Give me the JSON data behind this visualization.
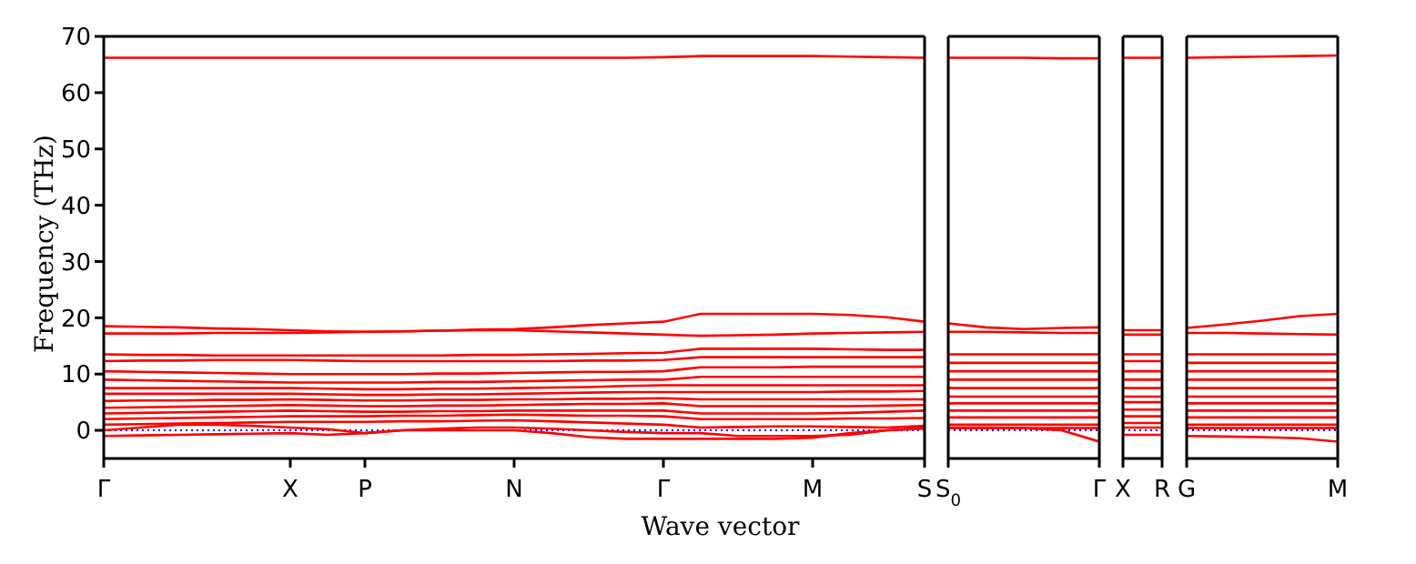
{
  "chart_data": [
    {
      "type": "line",
      "xlabel": "Wave vector",
      "ylabel": "Frequency (THz)",
      "ylim": [
        -5,
        70
      ],
      "yticks": [
        0,
        10,
        20,
        30,
        40,
        50,
        60,
        70
      ],
      "categories": [
        "Γ",
        null,
        null,
        null,
        null,
        "X",
        null,
        "P",
        null,
        null,
        null,
        "N",
        null,
        null,
        null,
        "Γ",
        null,
        null,
        null,
        "M",
        null,
        null,
        "S"
      ],
      "ref_lines": [
        {
          "axis": "y",
          "value": 0,
          "color": "#0000ff",
          "line_style": "dotted"
        }
      ],
      "series": [
        {
          "color": "#ff0000",
          "values": [
            66.2,
            66.2,
            66.2,
            66.2,
            66.2,
            66.2,
            66.2,
            66.2,
            66.2,
            66.2,
            66.2,
            66.2,
            66.2,
            66.2,
            66.2,
            66.3,
            66.5,
            66.5,
            66.5,
            66.5,
            66.4,
            66.3,
            66.2
          ]
        },
        {
          "color": "#ff0000",
          "values": [
            18.5,
            18.4,
            18.3,
            18.1,
            18,
            17.8,
            17.6,
            17.5,
            17.6,
            17.7,
            17.9,
            18,
            18.3,
            18.7,
            19,
            19.3,
            20.7,
            20.7,
            20.7,
            20.7,
            20.5,
            20.1,
            19.3
          ]
        },
        {
          "color": "#ff0000",
          "values": [
            17.2,
            17.2,
            17.2,
            17.3,
            17.3,
            17.3,
            17.4,
            17.5,
            17.6,
            17.7,
            17.8,
            17.8,
            17.6,
            17.4,
            17.2,
            17,
            16.8,
            16.9,
            17,
            17.2,
            17.3,
            17.4,
            17.5
          ]
        },
        {
          "color": "#ff0000",
          "values": [
            13.5,
            13.4,
            13.4,
            13.3,
            13.3,
            13.3,
            13.3,
            13.3,
            13.3,
            13.3,
            13.4,
            13.4,
            13.5,
            13.6,
            13.7,
            13.8,
            14.5,
            14.5,
            14.5,
            14.5,
            14.4,
            14.3,
            14.3
          ]
        },
        {
          "color": "#ff0000",
          "values": [
            12.3,
            12.4,
            12.4,
            12.5,
            12.5,
            12.5,
            12.4,
            12.3,
            12.3,
            12.3,
            12.3,
            12.3,
            12.3,
            12.4,
            12.4,
            12.5,
            13,
            13,
            13,
            13,
            13,
            13,
            13
          ]
        },
        {
          "color": "#ff0000",
          "values": [
            10.5,
            10.4,
            10.3,
            10.2,
            10.1,
            10,
            10,
            10,
            10,
            10.1,
            10.1,
            10.2,
            10.3,
            10.4,
            10.4,
            10.5,
            11.2,
            11.2,
            11.2,
            11.3,
            11.3,
            11.3,
            11.3
          ]
        },
        {
          "color": "#ff0000",
          "values": [
            9,
            8.9,
            8.8,
            8.7,
            8.6,
            8.5,
            8.5,
            8.5,
            8.5,
            8.6,
            8.6,
            8.7,
            8.8,
            8.9,
            9,
            9,
            9.5,
            9.5,
            9.5,
            9.5,
            9.5,
            9.5,
            9.5
          ]
        },
        {
          "color": "#ff0000",
          "values": [
            7.5,
            7.5,
            7.5,
            7.5,
            7.5,
            7.5,
            7.4,
            7.3,
            7.3,
            7.4,
            7.4,
            7.5,
            7.6,
            7.7,
            7.9,
            8,
            8,
            8,
            8,
            8,
            8,
            8,
            8
          ]
        },
        {
          "color": "#ff0000",
          "values": [
            6.5,
            6.5,
            6.5,
            6.5,
            6.5,
            6.5,
            6.4,
            6.3,
            6.3,
            6.4,
            6.4,
            6.5,
            6.6,
            6.7,
            6.8,
            6.8,
            6.8,
            6.8,
            6.8,
            6.8,
            6.9,
            6.9,
            7
          ]
        },
        {
          "color": "#ff0000",
          "values": [
            5.2,
            5.3,
            5.3,
            5.4,
            5.4,
            5.5,
            5.4,
            5.3,
            5.3,
            5.4,
            5.4,
            5.5,
            5.5,
            5.6,
            5.6,
            5.7,
            5.5,
            5.5,
            5.5,
            5.5,
            5.5,
            5.5,
            5.5
          ]
        },
        {
          "color": "#ff0000",
          "values": [
            4,
            4.1,
            4.2,
            4.3,
            4.4,
            4.5,
            4.4,
            4.3,
            4.3,
            4.4,
            4.4,
            4.5,
            4.6,
            4.7,
            4.7,
            4.8,
            4.3,
            4.3,
            4.3,
            4.3,
            4.3,
            4.4,
            4.5
          ]
        },
        {
          "color": "#ff0000",
          "values": [
            3,
            3.1,
            3.2,
            3.3,
            3.4,
            3.5,
            3.4,
            3.3,
            3.3,
            3.4,
            3.4,
            3.5,
            3.5,
            3.5,
            3.5,
            3.5,
            3,
            3,
            3,
            3,
            3.1,
            3.3,
            3.5
          ]
        },
        {
          "color": "#ff0000",
          "values": [
            2,
            2.1,
            2.2,
            2.3,
            2.4,
            2.5,
            2.5,
            2.5,
            2.6,
            2.6,
            2.7,
            2.8,
            2.7,
            2.6,
            2.6,
            2.5,
            2,
            2,
            2,
            2,
            2.1,
            2.1,
            2.2
          ]
        },
        {
          "color": "#ff0000",
          "values": [
            1,
            1.1,
            1.2,
            1.3,
            1.4,
            1.5,
            1.5,
            1.5,
            1.6,
            1.6,
            1.7,
            1.8,
            1.6,
            1.4,
            1.2,
            1,
            0.5,
            0.6,
            0.7,
            0.7,
            0.6,
            0.5,
            0.8
          ]
        },
        {
          "color": "#ff0000",
          "values": [
            0,
            0.5,
            1,
            1,
            0.8,
            0.5,
            0.2,
            -0.5,
            0,
            0.3,
            0.5,
            0.5,
            0.3,
            0,
            -0.3,
            -0.5,
            -0.5,
            -1,
            -1,
            -1,
            -0.8,
            0,
            0.5
          ]
        },
        {
          "color": "#ff0000",
          "values": [
            -1,
            -0.9,
            -0.8,
            -0.7,
            -0.6,
            -0.5,
            -0.8,
            -0.5,
            0,
            0,
            0,
            0,
            -0.5,
            -1.2,
            -1.5,
            -1.5,
            -1.5,
            -1.5,
            -1.5,
            -1.3,
            -0.5,
            0,
            0.3
          ]
        }
      ]
    },
    {
      "type": "line",
      "ylim": [
        -5,
        70
      ],
      "tick_labels": "x",
      "categories": [
        "S$_{0}$",
        null,
        null,
        null,
        "Γ"
      ],
      "ref_lines": [
        {
          "axis": "y",
          "value": 0,
          "color": "#0000ff",
          "line_style": "dotted"
        }
      ],
      "series": [
        {
          "color": "#ff0000",
          "values": [
            66.2,
            66.2,
            66.2,
            66.1,
            66.1
          ]
        },
        {
          "color": "#ff0000",
          "values": [
            19,
            18.3,
            18,
            18.2,
            18.3
          ]
        },
        {
          "color": "#ff0000",
          "values": [
            17.5,
            17.5,
            17.4,
            17.3,
            17.3
          ]
        },
        {
          "color": "#ff0000",
          "values": [
            13.5,
            13.5,
            13.5,
            13.5,
            13.5
          ]
        },
        {
          "color": "#ff0000",
          "values": [
            12,
            12,
            12,
            12,
            12
          ]
        },
        {
          "color": "#ff0000",
          "values": [
            10.5,
            10.5,
            10.5,
            10.5,
            10.5
          ]
        },
        {
          "color": "#ff0000",
          "values": [
            9,
            9,
            9,
            9,
            9
          ]
        },
        {
          "color": "#ff0000",
          "values": [
            7.5,
            7.5,
            7.5,
            7.5,
            7.5
          ]
        },
        {
          "color": "#ff0000",
          "values": [
            6,
            6,
            6,
            6,
            6
          ]
        },
        {
          "color": "#ff0000",
          "values": [
            4.8,
            4.8,
            4.8,
            4.8,
            4.8
          ]
        },
        {
          "color": "#ff0000",
          "values": [
            3.5,
            3.5,
            3.5,
            3.5,
            3.5
          ]
        },
        {
          "color": "#ff0000",
          "values": [
            2.3,
            2.3,
            2.3,
            2.3,
            2.3
          ]
        },
        {
          "color": "#ff0000",
          "values": [
            1,
            1,
            1,
            1,
            1
          ]
        },
        {
          "color": "#ff0000",
          "values": [
            0.5,
            0.5,
            0.4,
            0,
            -2
          ]
        },
        {
          "color": "#ff0000",
          "values": [
            0.4,
            0.4,
            0.4,
            0.4,
            0.4
          ]
        }
      ]
    },
    {
      "type": "line",
      "ylim": [
        -5,
        70
      ],
      "tick_labels": "x",
      "categories": [
        "X",
        "R"
      ],
      "ref_lines": [
        {
          "axis": "y",
          "value": 0,
          "color": "#0000ff",
          "line_style": "dotted"
        }
      ],
      "series": [
        {
          "color": "#ff0000",
          "values": [
            66.2,
            66.2
          ]
        },
        {
          "color": "#ff0000",
          "values": [
            17.8,
            17.8
          ]
        },
        {
          "color": "#ff0000",
          "values": [
            17,
            17
          ]
        },
        {
          "color": "#ff0000",
          "values": [
            13.5,
            13.5
          ]
        },
        {
          "color": "#ff0000",
          "values": [
            12.3,
            12.3
          ]
        },
        {
          "color": "#ff0000",
          "values": [
            10.5,
            10.5
          ]
        },
        {
          "color": "#ff0000",
          "values": [
            9,
            9
          ]
        },
        {
          "color": "#ff0000",
          "values": [
            7.5,
            7.5
          ]
        },
        {
          "color": "#ff0000",
          "values": [
            6,
            6
          ]
        },
        {
          "color": "#ff0000",
          "values": [
            5,
            5
          ]
        },
        {
          "color": "#ff0000",
          "values": [
            3.7,
            3.7
          ]
        },
        {
          "color": "#ff0000",
          "values": [
            2.5,
            2.5
          ]
        },
        {
          "color": "#ff0000",
          "values": [
            1.3,
            1.3
          ]
        },
        {
          "color": "#ff0000",
          "values": [
            0.5,
            0.5
          ]
        },
        {
          "color": "#ff0000",
          "values": [
            -0.8,
            -0.8
          ]
        }
      ]
    },
    {
      "type": "line",
      "ylim": [
        -5,
        70
      ],
      "tick_labels": "x",
      "categories": [
        "G",
        null,
        null,
        null,
        "M"
      ],
      "ref_lines": [
        {
          "axis": "y",
          "value": 0,
          "color": "#0000ff",
          "line_style": "dotted"
        }
      ],
      "series": [
        {
          "color": "#ff0000",
          "values": [
            66.2,
            66.3,
            66.4,
            66.5,
            66.6
          ]
        },
        {
          "color": "#ff0000",
          "values": [
            18.2,
            18.8,
            19.5,
            20.3,
            20.7
          ]
        },
        {
          "color": "#ff0000",
          "values": [
            17.3,
            17.3,
            17.2,
            17.1,
            17
          ]
        },
        {
          "color": "#ff0000",
          "values": [
            13.5,
            13.5,
            13.5,
            13.5,
            13.5
          ]
        },
        {
          "color": "#ff0000",
          "values": [
            12,
            12,
            12,
            12,
            12
          ]
        },
        {
          "color": "#ff0000",
          "values": [
            10.5,
            10.5,
            10.5,
            10.5,
            10.5
          ]
        },
        {
          "color": "#ff0000",
          "values": [
            9,
            9,
            9,
            9,
            9
          ]
        },
        {
          "color": "#ff0000",
          "values": [
            7.5,
            7.5,
            7.5,
            7.5,
            7.5
          ]
        },
        {
          "color": "#ff0000",
          "values": [
            6,
            6,
            6,
            6,
            6
          ]
        },
        {
          "color": "#ff0000",
          "values": [
            4.8,
            4.8,
            4.8,
            4.8,
            4.8
          ]
        },
        {
          "color": "#ff0000",
          "values": [
            3.5,
            3.5,
            3.5,
            3.5,
            3.5
          ]
        },
        {
          "color": "#ff0000",
          "values": [
            2.3,
            2.3,
            2.3,
            2.3,
            2.3
          ]
        },
        {
          "color": "#ff0000",
          "values": [
            1,
            1,
            1,
            1,
            1
          ]
        },
        {
          "color": "#ff0000",
          "values": [
            0.4,
            0.4,
            0.4,
            0.4,
            0.4
          ]
        },
        {
          "color": "#ff0000",
          "values": [
            -1,
            -1.1,
            -1.2,
            -1.4,
            -2
          ]
        }
      ]
    }
  ]
}
